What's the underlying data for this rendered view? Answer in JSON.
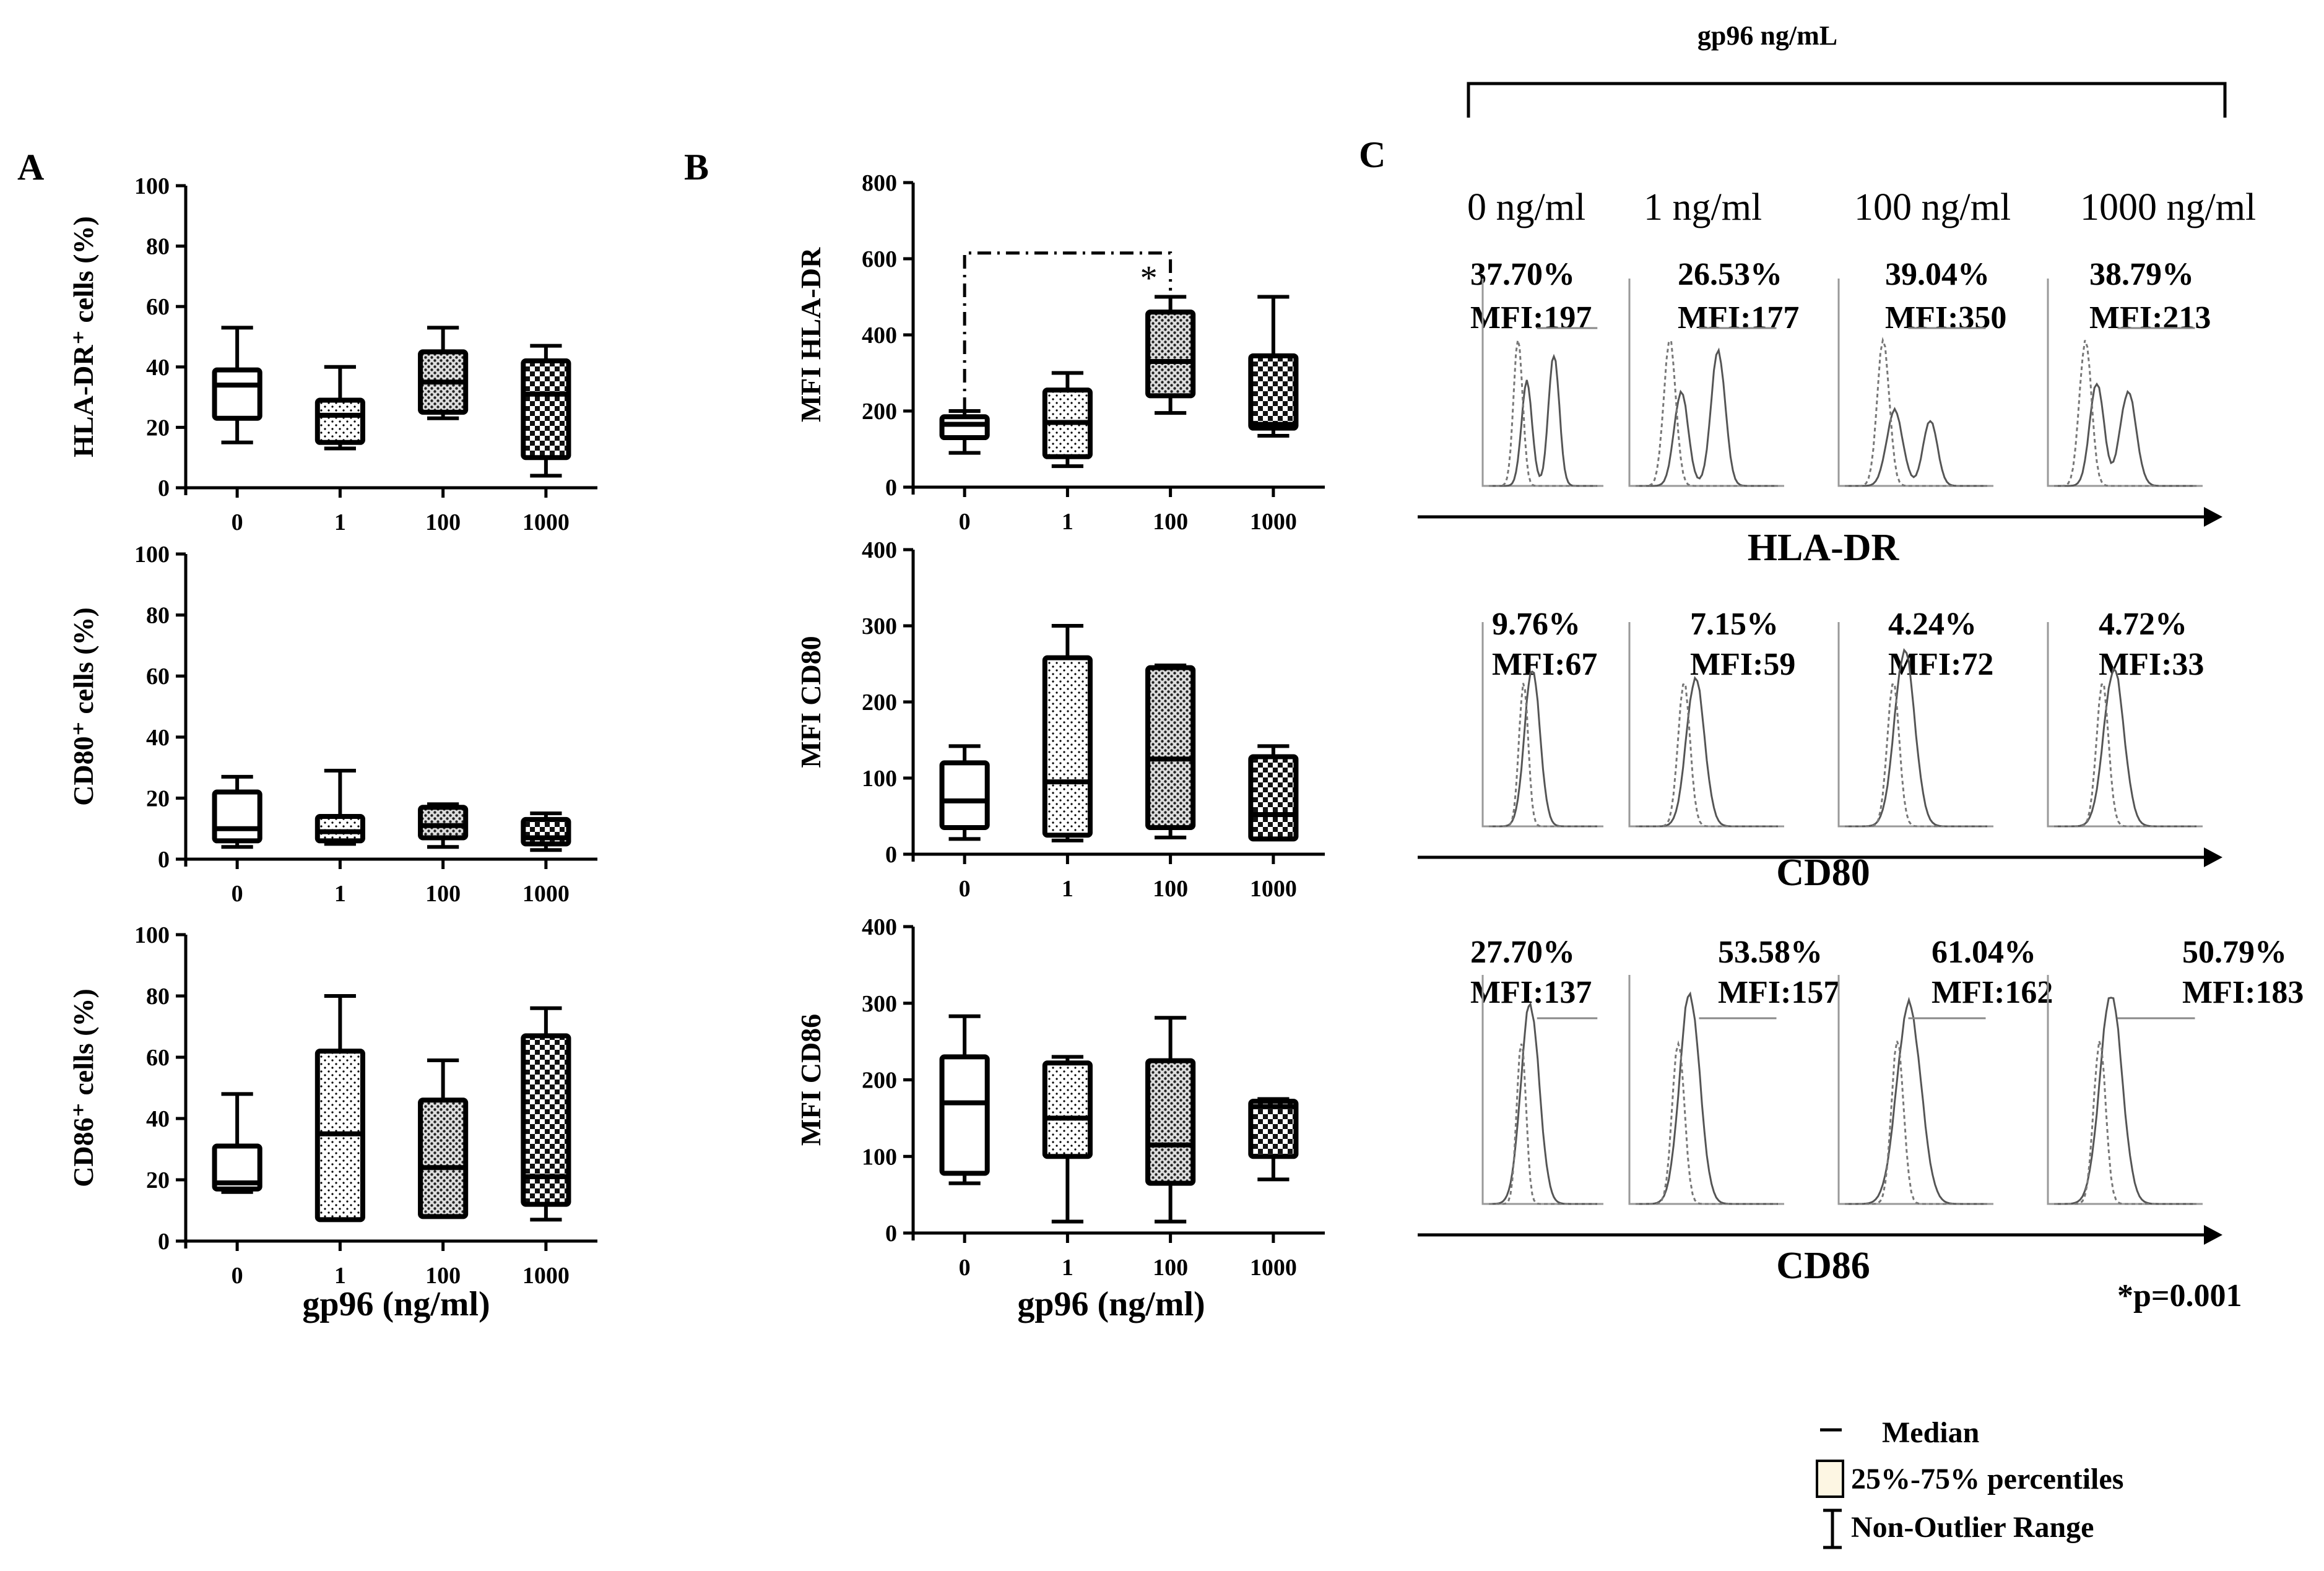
{
  "panel_labels": {
    "a": "A",
    "b": "B",
    "c": "C"
  },
  "top_label": "gp96 ng/mL",
  "xlabel_shared": "gp96 (ng/ml)",
  "categories": [
    "0",
    "1",
    "100",
    "1000"
  ],
  "colors": {
    "ink": "#000000",
    "histogram": "#555555",
    "legend_fill": "#fdf6e3"
  },
  "chart_data": [
    {
      "id": "A1",
      "type": "boxplot",
      "ylabel_html": "HLA-DR⁺ cells (%)",
      "ylabel": "HLA-DR+ cells (%)",
      "ylim": [
        0,
        100
      ],
      "yticks": [
        0,
        20,
        40,
        60,
        80,
        100
      ],
      "categories": [
        "0",
        "1",
        "100",
        "1000"
      ],
      "boxes": [
        {
          "min": 15,
          "q1": 23,
          "median": 34,
          "q3": 39,
          "max": 53
        },
        {
          "min": 13,
          "q1": 15,
          "median": 24,
          "q3": 29,
          "max": 40
        },
        {
          "min": 23,
          "q1": 25,
          "median": 35,
          "q3": 45,
          "max": 53
        },
        {
          "min": 4,
          "q1": 10,
          "median": 31,
          "q3": 42,
          "max": 47
        }
      ]
    },
    {
      "id": "A2",
      "type": "boxplot",
      "ylabel": "CD80+ cells (%)",
      "ylabel_html": "CD80⁺ cells (%)",
      "ylim": [
        0,
        100
      ],
      "yticks": [
        0,
        20,
        40,
        60,
        80,
        100
      ],
      "categories": [
        "0",
        "1",
        "100",
        "1000"
      ],
      "boxes": [
        {
          "min": 4,
          "q1": 6,
          "median": 10,
          "q3": 22,
          "max": 27
        },
        {
          "min": 5,
          "q1": 6,
          "median": 9,
          "q3": 14,
          "max": 29
        },
        {
          "min": 4,
          "q1": 7,
          "median": 11,
          "q3": 17,
          "max": 18
        },
        {
          "min": 3,
          "q1": 5,
          "median": 7,
          "q3": 13,
          "max": 15
        }
      ]
    },
    {
      "id": "A3",
      "type": "boxplot",
      "ylabel": "CD86+ cells (%)",
      "ylabel_html": "CD86⁺ cells (%)",
      "ylim": [
        0,
        100
      ],
      "yticks": [
        0,
        20,
        40,
        60,
        80,
        100
      ],
      "categories": [
        "0",
        "1",
        "100",
        "1000"
      ],
      "boxes": [
        {
          "min": 16,
          "q1": 17,
          "median": 19,
          "q3": 31,
          "max": 48
        },
        {
          "min": 7,
          "q1": 7,
          "median": 35,
          "q3": 62,
          "max": 80
        },
        {
          "min": 8,
          "q1": 8,
          "median": 24,
          "q3": 46,
          "max": 59
        },
        {
          "min": 7,
          "q1": 12,
          "median": 21,
          "q3": 67,
          "max": 76
        }
      ]
    },
    {
      "id": "B1",
      "type": "boxplot",
      "ylabel": "MFI HLA-DR",
      "ylim": [
        0,
        800
      ],
      "yticks": [
        0,
        200,
        400,
        600,
        800
      ],
      "categories": [
        "0",
        "1",
        "100",
        "1000"
      ],
      "boxes": [
        {
          "min": 90,
          "q1": 130,
          "median": 165,
          "q3": 185,
          "max": 200
        },
        {
          "min": 55,
          "q1": 80,
          "median": 170,
          "q3": 255,
          "max": 300
        },
        {
          "min": 195,
          "q1": 240,
          "median": 330,
          "q3": 460,
          "max": 500
        },
        {
          "min": 135,
          "q1": 155,
          "median": 165,
          "q3": 345,
          "max": 500
        }
      ],
      "significance": {
        "from": "0",
        "to": "100",
        "label": "*"
      }
    },
    {
      "id": "B2",
      "type": "boxplot",
      "ylabel": "MFI CD80",
      "ylim": [
        0,
        400
      ],
      "yticks": [
        0,
        100,
        200,
        300,
        400
      ],
      "categories": [
        "0",
        "1",
        "100",
        "1000"
      ],
      "boxes": [
        {
          "min": 20,
          "q1": 35,
          "median": 70,
          "q3": 120,
          "max": 142
        },
        {
          "min": 18,
          "q1": 25,
          "median": 95,
          "q3": 258,
          "max": 300
        },
        {
          "min": 22,
          "q1": 35,
          "median": 125,
          "q3": 245,
          "max": 248
        },
        {
          "min": 20,
          "q1": 20,
          "median": 52,
          "q3": 128,
          "max": 142
        }
      ]
    },
    {
      "id": "B3",
      "type": "boxplot",
      "ylabel": "MFI CD86",
      "ylim": [
        0,
        400
      ],
      "yticks": [
        0,
        100,
        200,
        300,
        400
      ],
      "categories": [
        "0",
        "1",
        "100",
        "1000"
      ],
      "boxes": [
        {
          "min": 65,
          "q1": 78,
          "median": 170,
          "q3": 230,
          "max": 283
        },
        {
          "min": 15,
          "q1": 100,
          "median": 150,
          "q3": 222,
          "max": 230
        },
        {
          "min": 15,
          "q1": 65,
          "median": 115,
          "q3": 225,
          "max": 281
        },
        {
          "min": 70,
          "q1": 100,
          "median": 165,
          "q3": 172,
          "max": 175
        }
      ]
    }
  ],
  "flow": {
    "doses": [
      "0 ng/ml",
      "1 ng/ml",
      "100 ng/ml",
      "1000 ng/ml"
    ],
    "rows": [
      {
        "marker": "HLA-DR",
        "cells": [
          {
            "pct": "37.70%",
            "mfi": "MFI:197"
          },
          {
            "pct": "26.53%",
            "mfi": "MFI:177"
          },
          {
            "pct": "39.04%",
            "mfi": "MFI:350"
          },
          {
            "pct": "38.79%",
            "mfi": "MFI:213"
          }
        ]
      },
      {
        "marker": "CD80",
        "cells": [
          {
            "pct": "9.76%",
            "mfi": "MFI:67"
          },
          {
            "pct": "7.15%",
            "mfi": "MFI:59"
          },
          {
            "pct": "4.24%",
            "mfi": "MFI:72"
          },
          {
            "pct": "4.72%",
            "mfi": "MFI:33"
          }
        ]
      },
      {
        "marker": "CD86",
        "cells": [
          {
            "pct": "27.70%",
            "mfi": "MFI:137"
          },
          {
            "pct": "53.58%",
            "mfi": "MFI:157"
          },
          {
            "pct": "61.04%",
            "mfi": "MFI:162"
          },
          {
            "pct": "50.79%",
            "mfi": "MFI:183"
          }
        ]
      }
    ]
  },
  "pvalue": "*p=0.001",
  "legend": {
    "median": "Median",
    "percentiles": "25%-75%  percentiles",
    "range": "Non-Outlier Range"
  }
}
